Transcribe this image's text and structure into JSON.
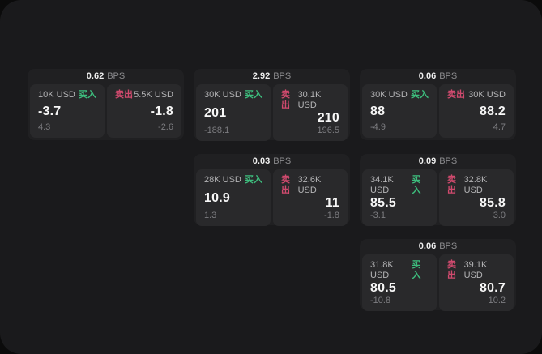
{
  "app": {
    "background": "#0b0b0b",
    "panel_background": "#1a1a1c",
    "card_background": "#202022",
    "pane_background": "#29292b"
  },
  "colors": {
    "buy_green": "#3dbd7d",
    "sell_red": "#d04a6e",
    "primary_text": "#f7f7f7",
    "muted_text": "#8c8c8f"
  },
  "labels": {
    "bps": "BPS",
    "buy": "买入",
    "sell": "卖出"
  },
  "cards": [
    {
      "bps": "0.62",
      "buy": {
        "amount": "10K USD",
        "price": "-3.7",
        "delta": "4.3"
      },
      "sell": {
        "amount": "5.5K USD",
        "price": "-1.8",
        "delta": "-2.6"
      }
    },
    {
      "bps": "2.92",
      "buy": {
        "amount": "30K USD",
        "price": "201",
        "delta": "-188.1"
      },
      "sell": {
        "amount": "30.1K USD",
        "price": "210",
        "delta": "196.5"
      }
    },
    {
      "bps": "0.06",
      "buy": {
        "amount": "30K USD",
        "price": "88",
        "delta": "-4.9"
      },
      "sell": {
        "amount": "30K USD",
        "price": "88.2",
        "delta": "4.7"
      }
    },
    {
      "bps": "0.03",
      "buy": {
        "amount": "28K USD",
        "price": "10.9",
        "delta": "1.3"
      },
      "sell": {
        "amount": "32.6K USD",
        "price": "11",
        "delta": "-1.8"
      }
    },
    {
      "bps": "0.09",
      "buy": {
        "amount": "34.1K USD",
        "price": "85.5",
        "delta": "-3.1"
      },
      "sell": {
        "amount": "32.8K USD",
        "price": "85.8",
        "delta": "3.0"
      }
    },
    {
      "bps": "0.06",
      "buy": {
        "amount": "31.8K USD",
        "price": "80.5",
        "delta": "-10.8"
      },
      "sell": {
        "amount": "39.1K USD",
        "price": "80.7",
        "delta": "10.2"
      }
    }
  ]
}
